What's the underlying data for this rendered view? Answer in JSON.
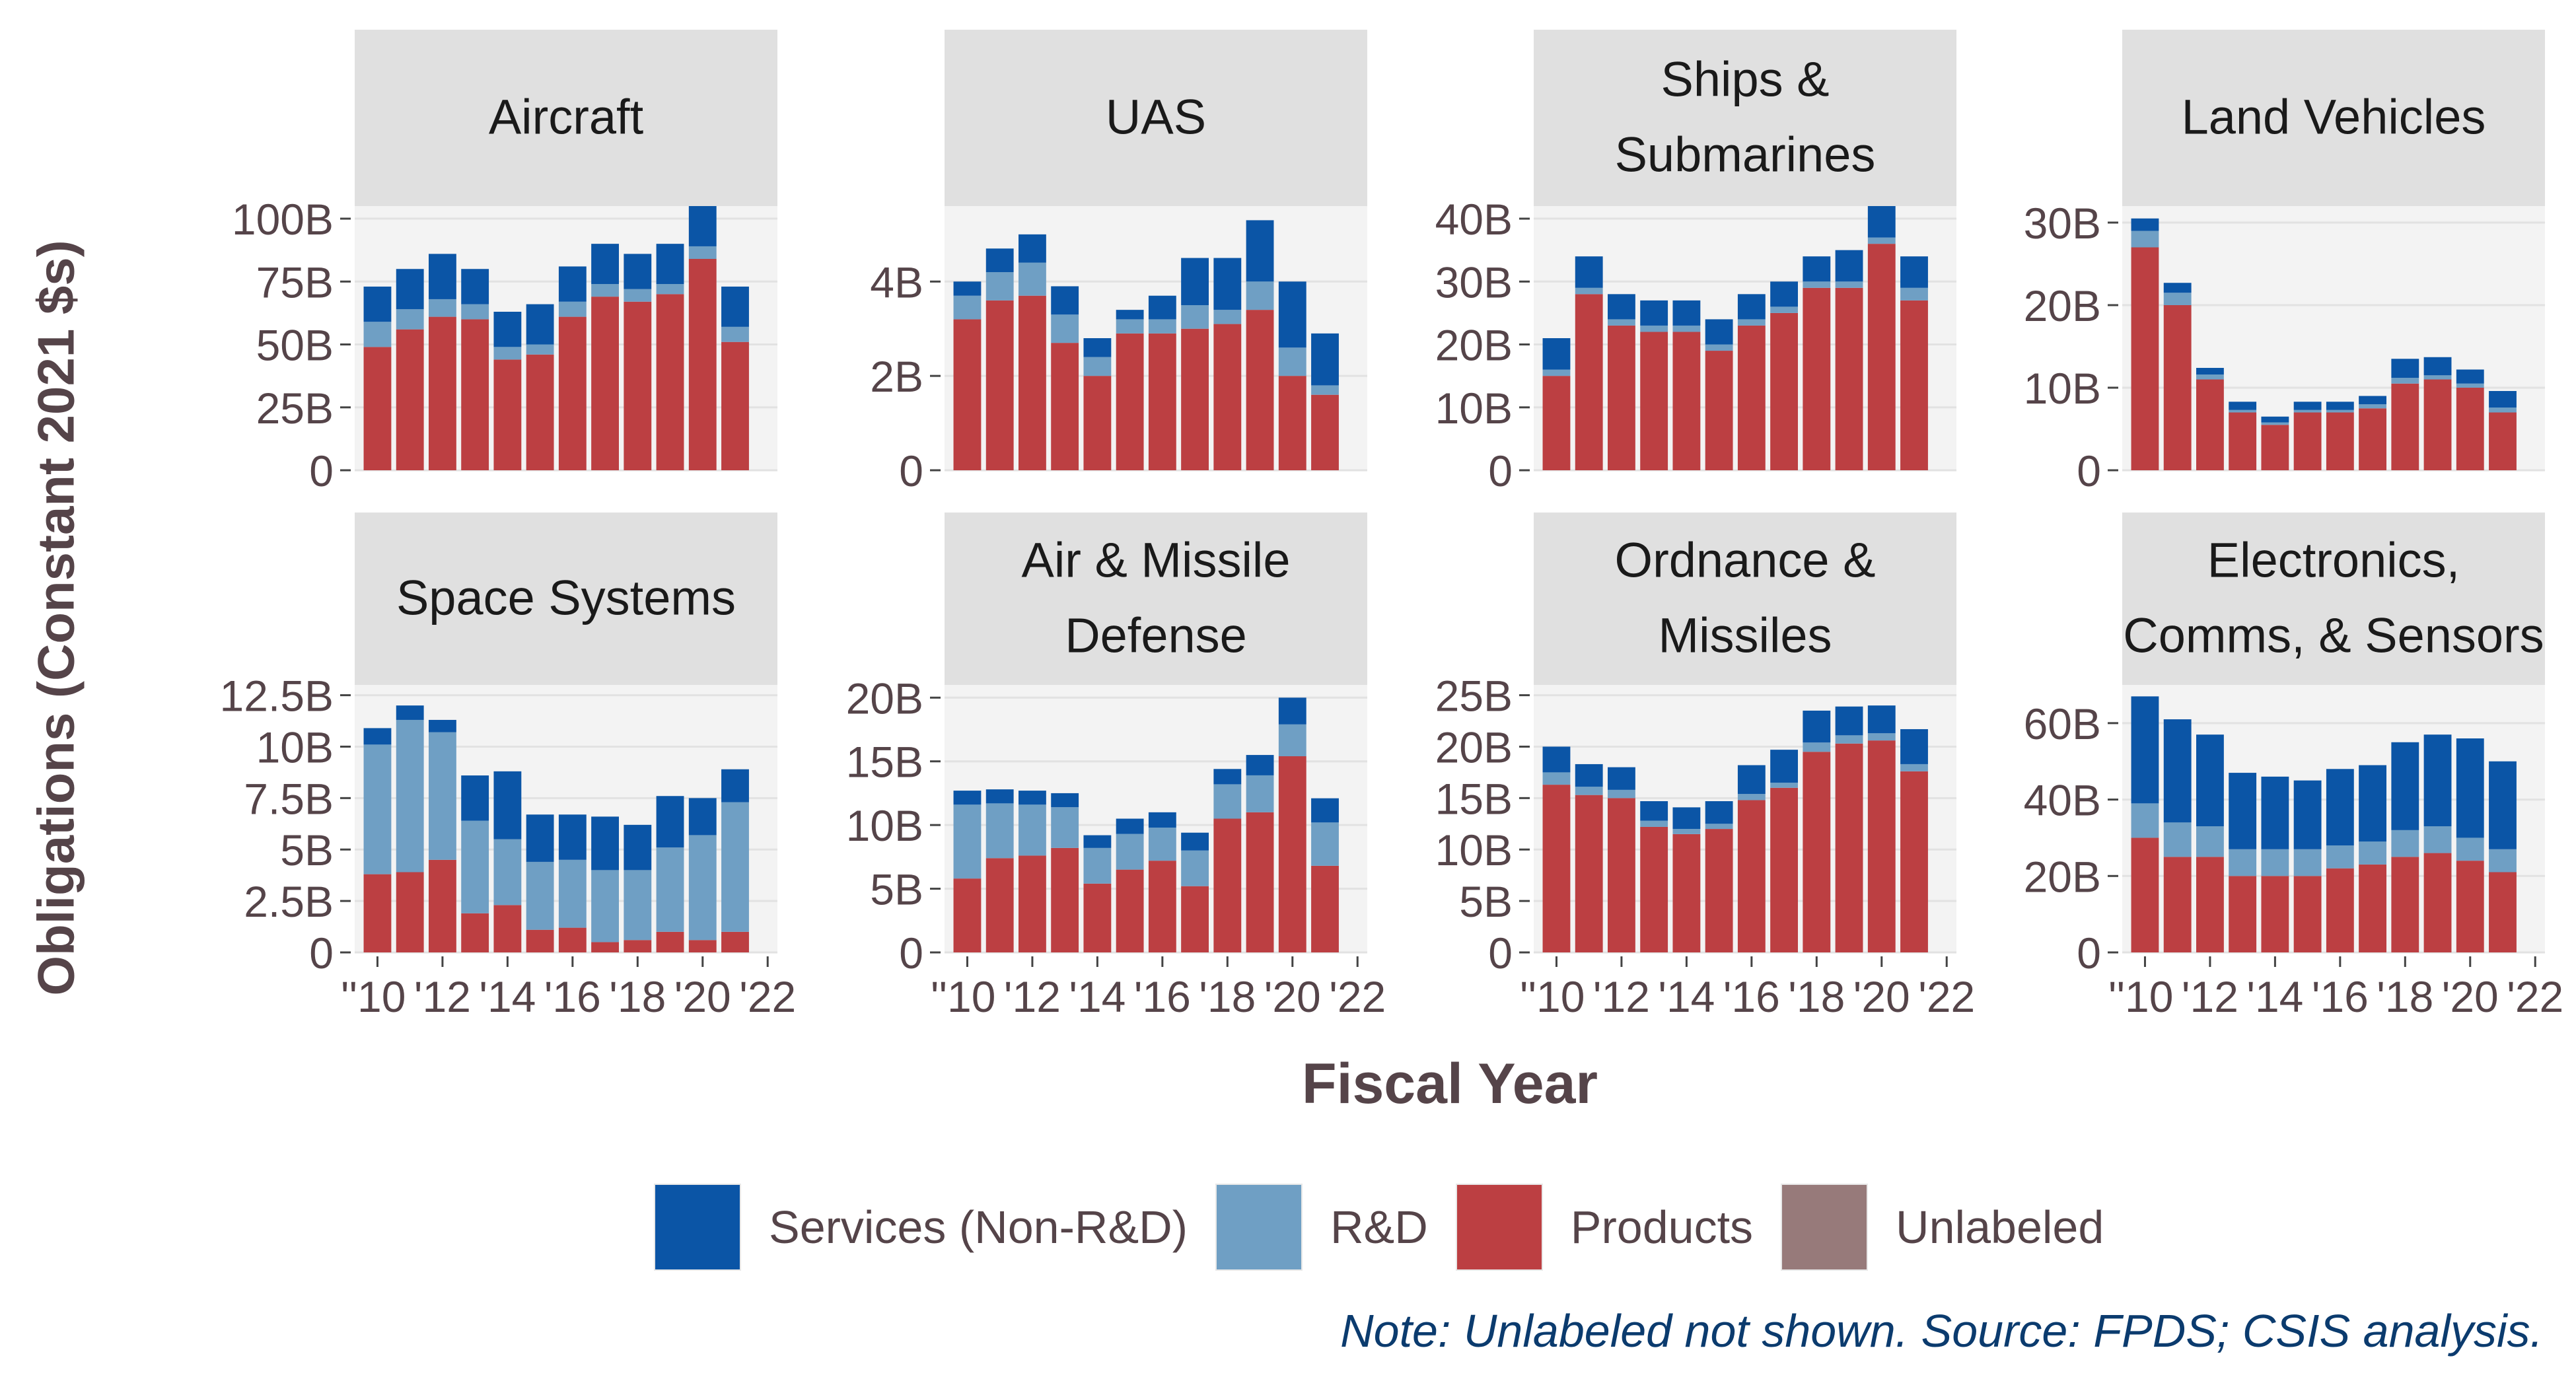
{
  "chart_data": {
    "type": "bar",
    "stacked": true,
    "facets": 8,
    "layout": "2 rows x 4 columns",
    "xlabel": "Fiscal Year",
    "ylabel": "Obligations (Constant 2021 $s)",
    "years": [
      "2010",
      "2011",
      "2012",
      "2013",
      "2014",
      "2015",
      "2016",
      "2017",
      "2018",
      "2019",
      "2020",
      "2021"
    ],
    "x_ticks": [
      "'10",
      "'12",
      "'14",
      "'16",
      "'18",
      "'20",
      "'22"
    ],
    "tick_prefix": "'",
    "legend": {
      "position": "bottom",
      "entries": [
        {
          "name": "Services (Non-R&D)",
          "color": "#0b55a6"
        },
        {
          "name": "R&D",
          "color": "#6f9fc4"
        },
        {
          "name": "Products",
          "color": "#bc3f42"
        },
        {
          "name": "Unlabeled",
          "color": "#977a7a"
        }
      ]
    },
    "note": "Note: Unlabeled not shown. Source: FPDS; CSIS analysis.",
    "panels": [
      {
        "title": [
          "Aircraft"
        ],
        "ylim": [
          0,
          105
        ],
        "y_ticks": [
          {
            "v": 0,
            "label": "0"
          },
          {
            "v": 25,
            "label": "25B"
          },
          {
            "v": 50,
            "label": "50B"
          },
          {
            "v": 75,
            "label": "75B"
          },
          {
            "v": 100,
            "label": "100B"
          }
        ],
        "products": [
          49,
          56,
          61,
          60,
          44,
          46,
          61,
          69,
          67,
          70,
          84,
          51
        ],
        "rd": [
          10,
          8,
          7,
          6,
          5,
          4,
          6,
          5,
          5,
          4,
          5,
          6
        ],
        "services": [
          14,
          16,
          18,
          14,
          14,
          16,
          14,
          16,
          14,
          16,
          16,
          16
        ]
      },
      {
        "title": [
          "UAS"
        ],
        "ylim": [
          0,
          5.6
        ],
        "y_ticks": [
          {
            "v": 0,
            "label": "0"
          },
          {
            "v": 2,
            "label": "2B"
          },
          {
            "v": 4,
            "label": "4B"
          }
        ],
        "products": [
          3.2,
          3.6,
          3.7,
          2.7,
          2.0,
          2.9,
          2.9,
          3.0,
          3.1,
          3.4,
          2.0,
          1.6
        ],
        "rd": [
          0.5,
          0.6,
          0.7,
          0.6,
          0.4,
          0.3,
          0.3,
          0.5,
          0.3,
          0.6,
          0.6,
          0.2
        ],
        "services": [
          0.3,
          0.5,
          0.6,
          0.6,
          0.4,
          0.2,
          0.5,
          1.0,
          1.1,
          1.3,
          1.4,
          1.1
        ]
      },
      {
        "title": [
          "Ships &",
          "Submarines"
        ],
        "ylim": [
          0,
          42
        ],
        "y_ticks": [
          {
            "v": 0,
            "label": "0"
          },
          {
            "v": 10,
            "label": "10B"
          },
          {
            "v": 20,
            "label": "20B"
          },
          {
            "v": 30,
            "label": "30B"
          },
          {
            "v": 40,
            "label": "40B"
          }
        ],
        "products": [
          15,
          28,
          23,
          22,
          22,
          19,
          23,
          25,
          29,
          29,
          36,
          27
        ],
        "rd": [
          1,
          1,
          1,
          1,
          1,
          1,
          1,
          1,
          1,
          1,
          1,
          2
        ],
        "services": [
          5,
          5,
          4,
          4,
          4,
          4,
          4,
          4,
          4,
          5,
          5,
          5
        ]
      },
      {
        "title": [
          "Land Vehicles"
        ],
        "ylim": [
          0,
          32
        ],
        "y_ticks": [
          {
            "v": 0,
            "label": "0"
          },
          {
            "v": 10,
            "label": "10B"
          },
          {
            "v": 20,
            "label": "20B"
          },
          {
            "v": 30,
            "label": "30B"
          }
        ],
        "products": [
          27,
          20,
          11,
          7,
          5.5,
          7,
          7,
          7.5,
          10.5,
          11,
          10,
          7
        ],
        "rd": [
          2,
          1.5,
          0.6,
          0.3,
          0.3,
          0.3,
          0.3,
          0.5,
          0.7,
          0.5,
          0.5,
          0.6
        ],
        "services": [
          1.5,
          1.2,
          0.8,
          1,
          0.7,
          1,
          1,
          1,
          2.3,
          2.2,
          1.7,
          2
        ]
      },
      {
        "title": [
          "Space Systems"
        ],
        "ylim": [
          0,
          13
        ],
        "y_ticks": [
          {
            "v": 0,
            "label": "0"
          },
          {
            "v": 2.5,
            "label": "2.5B"
          },
          {
            "v": 5,
            "label": "5B"
          },
          {
            "v": 7.5,
            "label": "7.5B"
          },
          {
            "v": 10,
            "label": "10B"
          },
          {
            "v": 12.5,
            "label": "12.5B"
          }
        ],
        "products": [
          3.8,
          3.9,
          4.5,
          1.9,
          2.3,
          1.1,
          1.2,
          0.5,
          0.6,
          1.0,
          0.6,
          1.0
        ],
        "rd": [
          6.3,
          7.4,
          6.2,
          4.5,
          3.2,
          3.3,
          3.3,
          3.5,
          3.4,
          4.1,
          5.1,
          6.3
        ],
        "services": [
          0.8,
          0.7,
          0.6,
          2.2,
          3.3,
          2.3,
          2.2,
          2.6,
          2.2,
          2.5,
          1.8,
          1.6
        ]
      },
      {
        "title": [
          "Air & Missile",
          "Defense"
        ],
        "ylim": [
          0,
          21
        ],
        "y_ticks": [
          {
            "v": 0,
            "label": "0"
          },
          {
            "v": 5,
            "label": "5B"
          },
          {
            "v": 10,
            "label": "10B"
          },
          {
            "v": 15,
            "label": "15B"
          },
          {
            "v": 20,
            "label": "20B"
          }
        ],
        "products": [
          5.8,
          7.4,
          7.6,
          8.2,
          5.4,
          6.5,
          7.2,
          5.2,
          10.5,
          11,
          15.4,
          6.8
        ],
        "rd": [
          5.8,
          4.3,
          4.0,
          3.2,
          2.8,
          2.8,
          2.6,
          2.8,
          2.7,
          2.9,
          2.5,
          3.4
        ],
        "services": [
          1.1,
          1.1,
          1.1,
          1.1,
          1.0,
          1.2,
          1.2,
          1.4,
          1.2,
          1.6,
          2.1,
          1.9
        ]
      },
      {
        "title": [
          "Ordnance &",
          "Missiles"
        ],
        "ylim": [
          0,
          26
        ],
        "y_ticks": [
          {
            "v": 0,
            "label": "0"
          },
          {
            "v": 5,
            "label": "5B"
          },
          {
            "v": 10,
            "label": "10B"
          },
          {
            "v": 15,
            "label": "15B"
          },
          {
            "v": 20,
            "label": "20B"
          },
          {
            "v": 25,
            "label": "25B"
          }
        ],
        "products": [
          16.3,
          15.3,
          15.0,
          12.2,
          11.5,
          12.0,
          14.8,
          16.0,
          19.5,
          20.3,
          20.6,
          17.6
        ],
        "rd": [
          1.2,
          0.8,
          0.8,
          0.6,
          0.5,
          0.5,
          0.6,
          0.5,
          0.9,
          0.8,
          0.7,
          0.7
        ],
        "services": [
          2.5,
          2.2,
          2.2,
          1.9,
          2.1,
          2.2,
          2.8,
          3.2,
          3.1,
          2.8,
          2.7,
          3.4
        ]
      },
      {
        "title": [
          "Electronics,",
          "Comms, & Sensors"
        ],
        "ylim": [
          0,
          70
        ],
        "y_ticks": [
          {
            "v": 0,
            "label": "0"
          },
          {
            "v": 20,
            "label": "20B"
          },
          {
            "v": 40,
            "label": "40B"
          },
          {
            "v": 60,
            "label": "60B"
          }
        ],
        "products": [
          30,
          25,
          25,
          20,
          20,
          20,
          22,
          23,
          25,
          26,
          24,
          21
        ],
        "rd": [
          9,
          9,
          8,
          7,
          7,
          7,
          6,
          6,
          7,
          7,
          6,
          6
        ],
        "services": [
          28,
          27,
          24,
          20,
          19,
          18,
          20,
          20,
          23,
          24,
          26,
          23
        ]
      }
    ]
  }
}
